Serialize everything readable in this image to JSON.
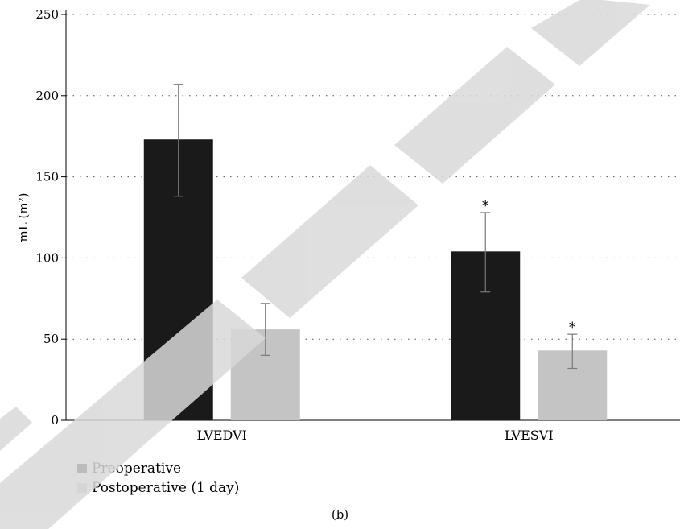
{
  "chart_data": {
    "type": "bar",
    "categories": [
      "LVEDVI",
      "LVESVI"
    ],
    "series": [
      {
        "name": "Preoperative",
        "color": "#1a1a1a",
        "values": [
          173,
          104
        ],
        "err_low": [
          138,
          79
        ],
        "err_high": [
          207,
          128
        ]
      },
      {
        "name": "Postoperative (1 day)",
        "color": "#c4c4c4",
        "values": [
          56,
          43
        ],
        "err_low": [
          40,
          32
        ],
        "err_high": [
          72,
          53
        ]
      }
    ],
    "ylabel": "mL (m²)",
    "ylim": [
      0,
      250
    ],
    "yticks": [
      0,
      50,
      100,
      150,
      200,
      250
    ],
    "grid": "dotted horizontal",
    "legend": "bottom-left",
    "annotations": [
      {
        "category": "LVESVI",
        "series": "Preoperative",
        "text": "*"
      },
      {
        "category": "LVESVI",
        "series": "Postoperative (1 day)",
        "text": "*"
      }
    ]
  },
  "caption": "(b)",
  "watermark": "RETRACTED"
}
